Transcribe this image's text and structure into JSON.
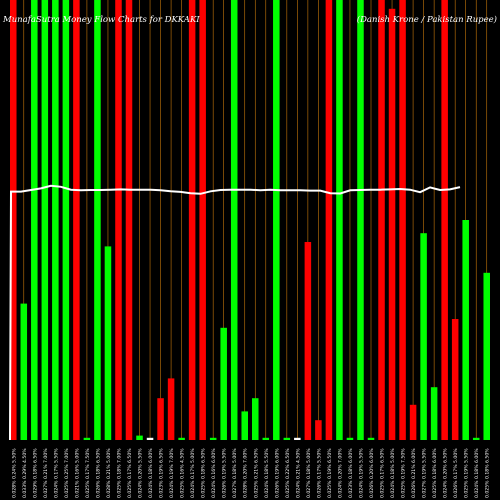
{
  "chart_data": {
    "type": "bar",
    "title": "MunafaSutra Money Flow Charts for DKKAKI",
    "subtitle": "(Danish Krone / Pakistan Rupee)",
    "colors": {
      "background": "#000000",
      "up": "#00ff00",
      "down": "#ff0000",
      "gridline": "#c8780a",
      "price_line": "#ffffff"
    },
    "price_ylim": [
      0,
      100
    ],
    "price_line": [
      78,
      78,
      78.5,
      79,
      79.8,
      79.5,
      78.6,
      78.4,
      78.5,
      78.5,
      78.6,
      78.7,
      78.6,
      78.6,
      78.6,
      78.4,
      78.1,
      77.9,
      77.5,
      77.3,
      78.1,
      78.5,
      78.6,
      78.6,
      78.6,
      78.4,
      78.6,
      78.4,
      78.4,
      78.4,
      78.3,
      78.3,
      77.5,
      77.4,
      78.4,
      78.5,
      78.6,
      78.6,
      78.7,
      78.8,
      78.6,
      77.8,
      79.3,
      78.5,
      78.7,
      79.4
    ],
    "bars": [
      {
        "dir": "down",
        "value": 100
      },
      {
        "dir": "up",
        "value": 31
      },
      {
        "dir": "up",
        "value": 100
      },
      {
        "dir": "up",
        "value": 100
      },
      {
        "dir": "up",
        "value": 100
      },
      {
        "dir": "up",
        "value": 100
      },
      {
        "dir": "down",
        "value": 100
      },
      {
        "dir": "up",
        "value": 0.5
      },
      {
        "dir": "up",
        "value": 100
      },
      {
        "dir": "up",
        "value": 44
      },
      {
        "dir": "down",
        "value": 100
      },
      {
        "dir": "down",
        "value": 100
      },
      {
        "dir": "up",
        "value": 1
      },
      {
        "dir": "down",
        "value": 0.5
      },
      {
        "dir": "down",
        "value": 9.5
      },
      {
        "dir": "down",
        "value": 14
      },
      {
        "dir": "up",
        "value": 0.5
      },
      {
        "dir": "down",
        "value": 100
      },
      {
        "dir": "down",
        "value": 100
      },
      {
        "dir": "up",
        "value": 0.5
      },
      {
        "dir": "up",
        "value": 25.5
      },
      {
        "dir": "up",
        "value": 100
      },
      {
        "dir": "up",
        "value": 6.5
      },
      {
        "dir": "up",
        "value": 9.5
      },
      {
        "dir": "up",
        "value": 0.5
      },
      {
        "dir": "up",
        "value": 100
      },
      {
        "dir": "up",
        "value": 0.5
      },
      {
        "dir": "down",
        "value": 0.5
      },
      {
        "dir": "down",
        "value": 45
      },
      {
        "dir": "down",
        "value": 4.5
      },
      {
        "dir": "down",
        "value": 100
      },
      {
        "dir": "up",
        "value": 100
      },
      {
        "dir": "up",
        "value": 0.5
      },
      {
        "dir": "up",
        "value": 100
      },
      {
        "dir": "up",
        "value": 0.5
      },
      {
        "dir": "down",
        "value": 100
      },
      {
        "dir": "down",
        "value": 98
      },
      {
        "dir": "down",
        "value": 100
      },
      {
        "dir": "down",
        "value": 8
      },
      {
        "dir": "up",
        "value": 47
      },
      {
        "dir": "up",
        "value": 12
      },
      {
        "dir": "down",
        "value": 100
      },
      {
        "dir": "down",
        "value": 27.5
      },
      {
        "dir": "up",
        "value": 50
      },
      {
        "dir": "up",
        "value": 0.5
      },
      {
        "dir": "up",
        "value": 38
      }
    ],
    "x_tick_labels": [
      "0.028% 0.24% 5.50%",
      "0.033% 0.29% 4.50%",
      "0.029% 0.18% 6.50%",
      "0.027% 0.21% 7.00%",
      "0.024% 0.17% 5.50%",
      "0.025% 0.25% 7.00%",
      "0.021% 0.16% 5.00%",
      "0.025% 0.17% 7.50%",
      "0.026% 0.18% 6.50%",
      "0.028% 0.21% 5.00%",
      "0.025% 0.18% 7.00%",
      "0.025% 0.17% 6.50%",
      "0.024% 0.20% 5.50%",
      "0.024% 0.18% 6.00%",
      "0.023% 0.19% 6.50%",
      "0.024% 0.19% 7.00%",
      "0.025% 0.16% 4.50%",
      "0.024% 0.17% 5.00%",
      "0.025% 0.18% 6.50%",
      "0.024% 0.16% 6.00%",
      "0.026% 0.19% 5.50%",
      "0.027% 0.18% 5.00%",
      "0.028% 0.20% 7.00%",
      "0.025% 0.21% 6.50%",
      "0.024% 0.18% 5.50%",
      "0.026% 0.19% 6.00%",
      "0.025% 0.22% 6.50%",
      "0.024% 0.21% 4.50%",
      "0.027% 0.18% 5.00%",
      "0.026% 0.17% 5.50%",
      "0.025% 0.19% 6.50%",
      "0.024% 0.20% 7.00%",
      "0.023% 0.18% 6.00%",
      "0.024% 0.19% 5.50%",
      "0.026% 0.20% 6.00%",
      "0.025% 0.17% 6.50%",
      "0.024% 0.18% 5.00%",
      "0.025% 0.19% 7.50%",
      "0.026% 0.21% 6.00%",
      "0.027% 0.19% 5.50%",
      "0.025% 0.18% 6.00%",
      "0.024% 0.20% 6.50%",
      "0.026% 0.17% 5.00%",
      "0.025% 0.19% 5.50%",
      "0.024% 0.18% 6.00%",
      "0.025% 0.18% 6.50%"
    ]
  }
}
